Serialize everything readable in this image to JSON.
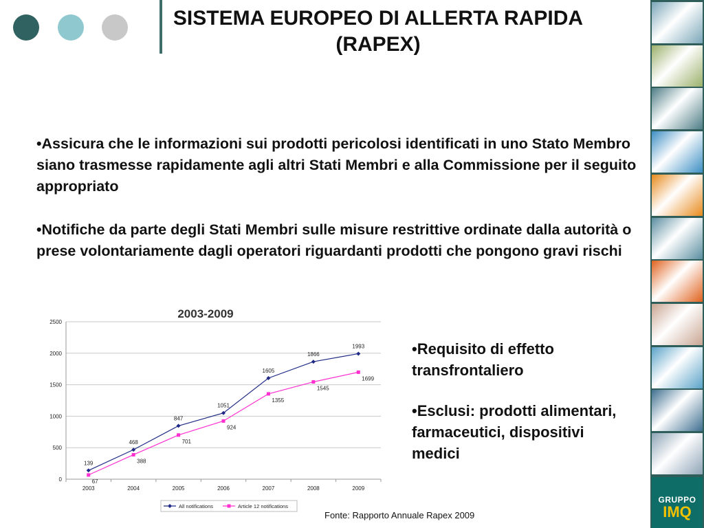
{
  "slide": {
    "title": "SISTEMA EUROPEO DI ALLERTA RAPIDA (RAPEX)",
    "bullets": [
      "•Assicura che le informazioni sui prodotti pericolosi identificati in uno Stato Membro siano trasmesse rapidamente agli altri Stati Membri e alla Commissione per il seguito appropriato",
      "•Notifiche da parte degli Stati Membri sulle misure restrittive ordinate dalla autorità o prese volontariamente dagli operatori riguardanti prodotti che pongono gravi rischi"
    ],
    "side_bullets": [
      "•Requisito di effetto transfrontaliero",
      "•Esclusi: prodotti alimentari, farmaceutici, dispositivi medici"
    ],
    "source": "Fonte: Rapporto Annuale Rapex 2009",
    "logo": {
      "line1": "GRUPPO",
      "line2": "IMQ"
    },
    "colors": {
      "dot1": "#2f6260",
      "dot2": "#8fc9cf",
      "dot3": "#c8c8c8",
      "sidebar": "#2f5d5a",
      "logo_bg": "#0f6d68",
      "logo_accent": "#f2c200"
    },
    "sidebar_tiles": [
      {
        "icon": "photo-metal-tubes",
        "color": "#7aa6b8"
      },
      {
        "icon": "photo-light-bulb",
        "color": "#9bb06a"
      },
      {
        "icon": "photo-red-car",
        "color": "#4e7d86"
      },
      {
        "icon": "photo-blue-glass",
        "color": "#3d8fc4"
      },
      {
        "icon": "photo-orange-waves",
        "color": "#e88a1c"
      },
      {
        "icon": "photo-water-pipes",
        "color": "#5b8ea0"
      },
      {
        "icon": "photo-orange-glow",
        "color": "#e0621e"
      },
      {
        "icon": "photo-fabric-stack",
        "color": "#c9a592"
      },
      {
        "icon": "photo-blue-lens",
        "color": "#5aa2c8"
      },
      {
        "icon": "photo-tower-sky",
        "color": "#3f6f90"
      },
      {
        "icon": "photo-satellite-dishes",
        "color": "#8ea4b6"
      }
    ]
  },
  "chart_data": {
    "type": "line",
    "title": "2003-2009",
    "categories": [
      "2003",
      "2004",
      "2005",
      "2006",
      "2007",
      "2008",
      "2009"
    ],
    "series": [
      {
        "name": "All notifications",
        "values": [
          139,
          468,
          847,
          1051,
          1605,
          1866,
          1993
        ],
        "color": "#1f2a86"
      },
      {
        "name": "Article 12 notifications",
        "values": [
          67,
          388,
          701,
          924,
          1355,
          1545,
          1699
        ],
        "color": "#ff2fd0"
      }
    ],
    "ylim": [
      0,
      2500
    ],
    "yticks": [
      "0",
      "500",
      "1000",
      "1500",
      "2000",
      "2500"
    ],
    "grid": true,
    "legend": "bottom"
  }
}
